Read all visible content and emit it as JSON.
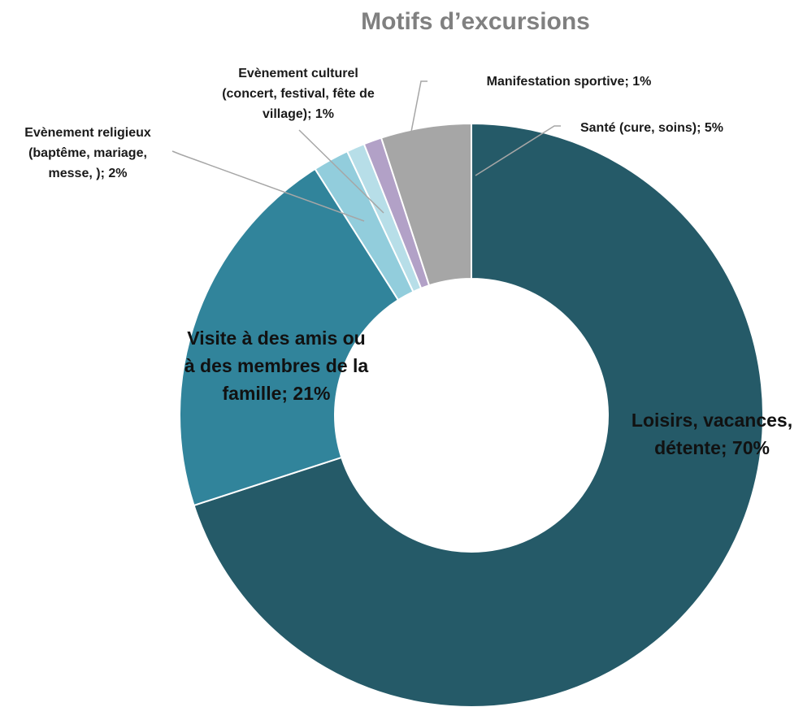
{
  "chart_data": {
    "type": "pie",
    "variant": "donut",
    "title": "Motifs d’excursions",
    "slices": [
      {
        "label": "Loisirs, vacances, détente",
        "value": 70,
        "color": "#255a68"
      },
      {
        "label": "Visite à des amis ou à des membres de la famille",
        "value": 21,
        "color": "#31849b"
      },
      {
        "label": "Evènement religieux (baptême, mariage, messe, )",
        "value": 2,
        "color": "#92cddc"
      },
      {
        "label": "Evènement culturel (concert, festival, fête de village)",
        "value": 1,
        "color": "#b7dee8"
      },
      {
        "label": "Manifestation sportive",
        "value": 1,
        "color": "#b2a1c7"
      },
      {
        "label": "Santé (cure, soins)",
        "value": 5,
        "color": "#a6a6a6"
      }
    ],
    "data_labels": [
      {
        "lines": [
          "Loisirs, vacances,",
          "détente; 70%"
        ]
      },
      {
        "lines": [
          "Visite à des amis ou",
          "à des membres de la",
          "famille; 21%"
        ]
      },
      {
        "lines": [
          "Evènement religieux",
          "(baptême, mariage,",
          "messe, ); 2%"
        ]
      },
      {
        "lines": [
          "Evènement culturel",
          "(concert, festival, fête de",
          "village); 1%"
        ]
      },
      {
        "lines": [
          "Manifestation sportive; 1%"
        ]
      },
      {
        "lines": [
          "Santé (cure, soins); 5%"
        ]
      }
    ]
  }
}
